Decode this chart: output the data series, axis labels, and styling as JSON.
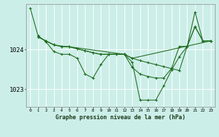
{
  "title": "Graphe pression niveau de la mer (hPa)",
  "bg_color": "#cceee8",
  "grid_color": "#ffffff",
  "line_color": "#1e6b1e",
  "xlim": [
    -0.5,
    23.5
  ],
  "ylim": [
    1022.55,
    1025.15
  ],
  "yticks": [
    1023,
    1024
  ],
  "xtick_labels": [
    "0",
    "1",
    "2",
    "3",
    "4",
    "5",
    "6",
    "7",
    "8",
    "9",
    "10",
    "11",
    "12",
    "13",
    "14",
    "15",
    "16",
    "17",
    "18",
    "19",
    "20",
    "21",
    "22",
    "23"
  ],
  "series1_x": [
    0,
    1,
    2,
    3,
    4,
    5,
    6,
    7,
    8,
    9,
    10,
    11,
    12,
    13,
    14,
    15,
    16,
    17,
    18,
    19,
    20,
    21,
    22,
    23
  ],
  "series1_y": [
    1025.05,
    1024.35,
    1024.2,
    1023.95,
    1023.88,
    1023.88,
    1023.78,
    1023.38,
    1023.28,
    1023.62,
    1023.88,
    1023.88,
    1023.88,
    1023.68,
    1022.72,
    1022.72,
    1022.72,
    1023.08,
    1023.48,
    1023.82,
    1024.08,
    1024.58,
    1024.22,
    1024.22
  ],
  "series2_x": [
    1,
    2,
    3,
    4,
    5,
    6,
    7,
    8,
    9,
    10,
    11,
    12,
    13,
    14,
    15,
    16,
    17,
    18,
    19,
    20,
    21,
    22,
    23
  ],
  "series2_y": [
    1024.32,
    1024.22,
    1024.12,
    1024.08,
    1024.07,
    1024.02,
    1023.97,
    1023.92,
    1023.88,
    1023.88,
    1023.88,
    1023.88,
    1023.78,
    1023.72,
    1023.67,
    1023.62,
    1023.57,
    1023.52,
    1023.47,
    1024.08,
    1024.58,
    1024.22,
    1024.22
  ],
  "series3_x": [
    1,
    2,
    3,
    4,
    5,
    6,
    7,
    8,
    9,
    10,
    11,
    12,
    13,
    23
  ],
  "series3_y": [
    1024.32,
    1024.22,
    1024.12,
    1024.08,
    1024.07,
    1024.02,
    1023.97,
    1023.92,
    1023.88,
    1023.88,
    1023.88,
    1023.88,
    1023.78,
    1024.22
  ],
  "series4_x": [
    2,
    3,
    4,
    5,
    12,
    13,
    14,
    15,
    16,
    17,
    18,
    19,
    20,
    21,
    22,
    23
  ],
  "series4_y": [
    1024.22,
    1024.12,
    1024.08,
    1024.07,
    1023.88,
    1023.55,
    1023.38,
    1023.32,
    1023.28,
    1023.28,
    1023.52,
    1024.08,
    1024.08,
    1024.95,
    1024.22,
    1024.22
  ]
}
